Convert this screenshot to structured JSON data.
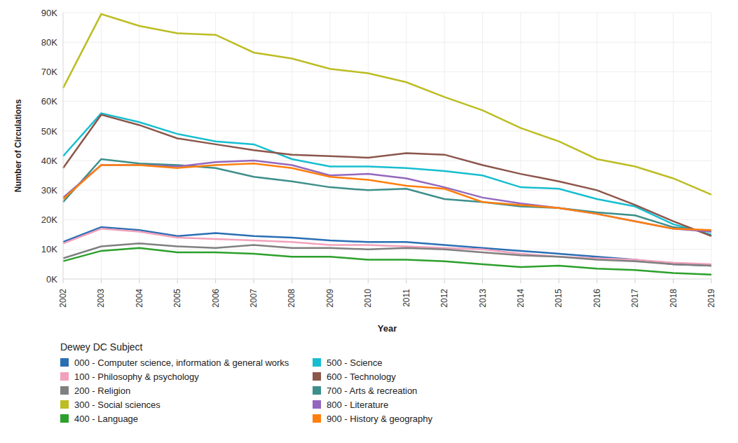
{
  "chart_data": {
    "type": "line",
    "x_label": "Year",
    "y_label": "Number of Circulations",
    "legend_title": "Dewey DC Subject",
    "legend": "bottom-left",
    "grid": true,
    "categories": [
      "2002",
      "2003",
      "2004",
      "2005",
      "2006",
      "2007",
      "2008",
      "2009",
      "2010",
      "2011",
      "2012",
      "2013",
      "2014",
      "2015",
      "2016",
      "2017",
      "2018",
      "2019"
    ],
    "ylim": [
      0,
      90000
    ],
    "yticks": [
      {
        "value": 0,
        "label": "0K"
      },
      {
        "value": 10000,
        "label": "10K"
      },
      {
        "value": 20000,
        "label": "20K"
      },
      {
        "value": 30000,
        "label": "30K"
      },
      {
        "value": 40000,
        "label": "40K"
      },
      {
        "value": 50000,
        "label": "50K"
      },
      {
        "value": 60000,
        "label": "60K"
      },
      {
        "value": 70000,
        "label": "70K"
      },
      {
        "value": 80000,
        "label": "80K"
      },
      {
        "value": 90000,
        "label": "90K"
      }
    ],
    "series": [
      {
        "name": "000 - Computer science, information & general works",
        "color": "#2a6fb4",
        "values": [
          12500,
          17500,
          16500,
          14500,
          15500,
          14500,
          14000,
          13000,
          12500,
          12500,
          11500,
          10500,
          9500,
          8500,
          7500,
          6500,
          5000,
          4500
        ]
      },
      {
        "name": "100 - Philosophy & psychology",
        "color": "#f1a1bb",
        "values": [
          12000,
          17000,
          16000,
          14000,
          13500,
          13000,
          12500,
          11500,
          11500,
          11000,
          10500,
          10000,
          8500,
          7500,
          7000,
          6500,
          5500,
          5000
        ]
      },
      {
        "name": "200 - Religion",
        "color": "#808080",
        "values": [
          7000,
          11000,
          12000,
          11000,
          10500,
          11500,
          10500,
          10500,
          10000,
          10500,
          10000,
          9000,
          8000,
          7500,
          6500,
          6000,
          5000,
          4500
        ]
      },
      {
        "name": "300 - Social sciences",
        "color": "#bcbd22",
        "values": [
          64500,
          89500,
          85500,
          83000,
          82500,
          76500,
          74500,
          71000,
          69500,
          66500,
          61500,
          57000,
          51000,
          46500,
          40500,
          38000,
          34000,
          28500
        ]
      },
      {
        "name": "400 - Language",
        "color": "#2ca02c",
        "values": [
          6000,
          9500,
          10500,
          9000,
          9000,
          8500,
          7500,
          7500,
          6500,
          6500,
          6000,
          5000,
          4000,
          4500,
          3500,
          3000,
          2000,
          1500
        ]
      },
      {
        "name": "500 - Science",
        "color": "#17becf",
        "values": [
          41500,
          56000,
          53000,
          49000,
          46500,
          45500,
          40500,
          38000,
          38000,
          37500,
          36500,
          35000,
          31000,
          30500,
          27000,
          24500,
          18500,
          15000
        ]
      },
      {
        "name": "600 - Technology",
        "color": "#8c564b",
        "values": [
          37500,
          55500,
          52000,
          47500,
          45500,
          43500,
          42000,
          41500,
          41000,
          42500,
          42000,
          38500,
          35500,
          33000,
          30000,
          25000,
          19500,
          14500
        ]
      },
      {
        "name": "700 - Arts & recreation",
        "color": "#3d8f8a",
        "values": [
          26000,
          40500,
          39000,
          38500,
          37500,
          34500,
          33000,
          31000,
          30000,
          30500,
          27000,
          26000,
          24500,
          24000,
          22500,
          21500,
          17500,
          16000
        ]
      },
      {
        "name": "800 - Literature",
        "color": "#9467bd",
        "values": [
          27500,
          38500,
          38500,
          38000,
          39500,
          40000,
          38500,
          35000,
          35500,
          34000,
          31000,
          27500,
          25500,
          24000,
          22000,
          19500,
          17000,
          16000
        ]
      },
      {
        "name": "900 - History & geography",
        "color": "#ff7f0e",
        "values": [
          27000,
          38500,
          38500,
          37500,
          38500,
          39000,
          37500,
          34500,
          33500,
          31500,
          30500,
          26000,
          25000,
          24000,
          22000,
          19500,
          17000,
          16500
        ]
      }
    ]
  }
}
